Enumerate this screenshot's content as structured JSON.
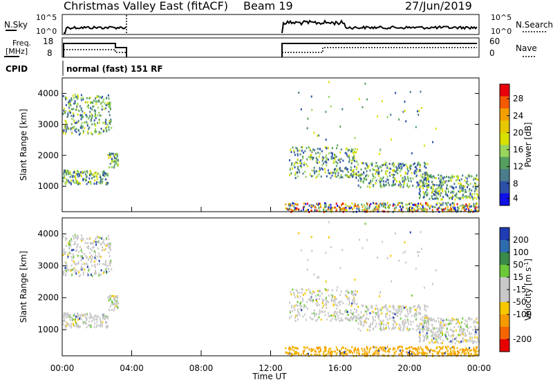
{
  "header": {
    "title": "Christmas Valley East (fitACF)",
    "beam": "Beam 19",
    "date": "27/Jun/2019"
  },
  "noise_panel": {
    "left_label": "N.Sky",
    "right_label": "N.Search",
    "left_ticks": [
      "10^5",
      "10^0"
    ],
    "right_ticks": [
      "10^5",
      "10^0"
    ]
  },
  "freq_panel": {
    "left_label_line1": "Freq.",
    "left_label_line2": "[MHz]",
    "right_label": "Nave",
    "left_ticks": [
      "18",
      "8"
    ],
    "right_ticks": [
      "60",
      "0"
    ]
  },
  "cpid": {
    "label": "CPID",
    "value": "normal (fast) 151 RF"
  },
  "chart_data": [
    {
      "type": "heatmap",
      "title": "Power",
      "ylabel": "Slant Range [km]",
      "xlim": [
        "00:00",
        "00:00"
      ],
      "ylim": [
        180,
        4500
      ],
      "yticks": [
        "1000",
        "2000",
        "3000",
        "4000"
      ],
      "colorbar_label": "Power [dB]",
      "colorbar_ticks": [
        "28",
        "24",
        "20",
        "16",
        "12",
        "8",
        "4"
      ],
      "colorbar_colors": [
        "#e8000b",
        "#f55a00",
        "#f5a000",
        "#e6c800",
        "#d8e000",
        "#99d45c",
        "#55a060",
        "#4b7d8c",
        "#2c50a8",
        "#1010e8"
      ],
      "coverage": [
        {
          "start_hour": 0.0,
          "end_hour": 3.5
        },
        {
          "start_hour": 12.8,
          "end_hour": 24.0
        }
      ]
    },
    {
      "type": "heatmap",
      "title": "Velocity",
      "ylabel": "Slant Range [km]",
      "xlabel": "Time UT",
      "xticks": [
        "00:00",
        "04:00",
        "08:00",
        "12:00",
        "16:00",
        "20:00",
        "00:00"
      ],
      "ylim": [
        180,
        4500
      ],
      "yticks": [
        "1000",
        "2000",
        "3000",
        "4000"
      ],
      "colorbar_label": "Velocity [m s^-1]",
      "colorbar_ticks": [
        "200",
        "100",
        "50",
        "15",
        "-15",
        "-50",
        "-100",
        "-200"
      ],
      "colorbar_colors": [
        "#1f3cb4",
        "#2e6cb0",
        "#3a8a4a",
        "#6cc838",
        "#c8c8c8",
        "#c8c8c8",
        "#f5c800",
        "#f59a00",
        "#f56400",
        "#e80000"
      ]
    }
  ]
}
